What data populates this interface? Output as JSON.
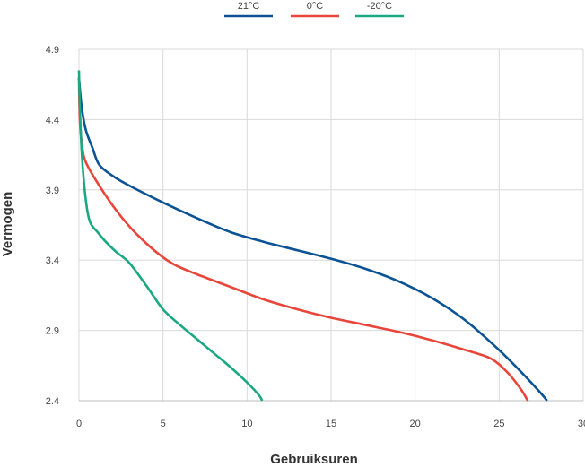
{
  "chart_data": {
    "type": "line",
    "xlabel": "Gebruiksuren",
    "ylabel": "Vermogen",
    "xlim": [
      0,
      30
    ],
    "ylim": [
      2.4,
      4.9
    ],
    "x_ticks": [
      "0",
      "5",
      "10",
      "15",
      "20",
      "25",
      "30"
    ],
    "y_ticks": [
      "2.4",
      "2.9",
      "3.4",
      "3.9",
      "4.4",
      "4.9"
    ],
    "grid": true,
    "legend_position": "top-center",
    "series": [
      {
        "name": "21°C",
        "color": "#0b5394",
        "points": [
          [
            0,
            4.7
          ],
          [
            0.15,
            4.5
          ],
          [
            0.4,
            4.33
          ],
          [
            0.8,
            4.2
          ],
          [
            1.2,
            4.08
          ],
          [
            2,
            4.0
          ],
          [
            3,
            3.93
          ],
          [
            5,
            3.81
          ],
          [
            7,
            3.7
          ],
          [
            9,
            3.6
          ],
          [
            11,
            3.53
          ],
          [
            13,
            3.47
          ],
          [
            15,
            3.41
          ],
          [
            17,
            3.34
          ],
          [
            19,
            3.25
          ],
          [
            21,
            3.13
          ],
          [
            23,
            2.97
          ],
          [
            25,
            2.76
          ],
          [
            26.5,
            2.58
          ],
          [
            27.5,
            2.45
          ],
          [
            27.85,
            2.4
          ]
        ]
      },
      {
        "name": "0°C",
        "color": "#e8463a",
        "points": [
          [
            0,
            4.7
          ],
          [
            0.05,
            4.4
          ],
          [
            0.2,
            4.2
          ],
          [
            0.4,
            4.1
          ],
          [
            1,
            3.97
          ],
          [
            2,
            3.79
          ],
          [
            3,
            3.64
          ],
          [
            4,
            3.52
          ],
          [
            5,
            3.42
          ],
          [
            5.8,
            3.36
          ],
          [
            7,
            3.3
          ],
          [
            9,
            3.21
          ],
          [
            11,
            3.12
          ],
          [
            13,
            3.05
          ],
          [
            15,
            2.99
          ],
          [
            17,
            2.94
          ],
          [
            19,
            2.89
          ],
          [
            21,
            2.83
          ],
          [
            23,
            2.76
          ],
          [
            24.5,
            2.7
          ],
          [
            25.5,
            2.6
          ],
          [
            26.3,
            2.48
          ],
          [
            26.7,
            2.4
          ]
        ]
      },
      {
        "name": "-20°C",
        "color": "#1aa884",
        "points": [
          [
            0,
            4.75
          ],
          [
            0.05,
            4.5
          ],
          [
            0.15,
            4.2
          ],
          [
            0.3,
            3.95
          ],
          [
            0.5,
            3.75
          ],
          [
            0.7,
            3.66
          ],
          [
            1.1,
            3.6
          ],
          [
            1.6,
            3.53
          ],
          [
            2.2,
            3.46
          ],
          [
            3,
            3.38
          ],
          [
            4,
            3.22
          ],
          [
            5,
            3.05
          ],
          [
            6,
            2.94
          ],
          [
            7,
            2.84
          ],
          [
            8,
            2.74
          ],
          [
            9,
            2.64
          ],
          [
            10,
            2.53
          ],
          [
            10.7,
            2.44
          ],
          [
            10.9,
            2.4
          ]
        ]
      }
    ]
  }
}
